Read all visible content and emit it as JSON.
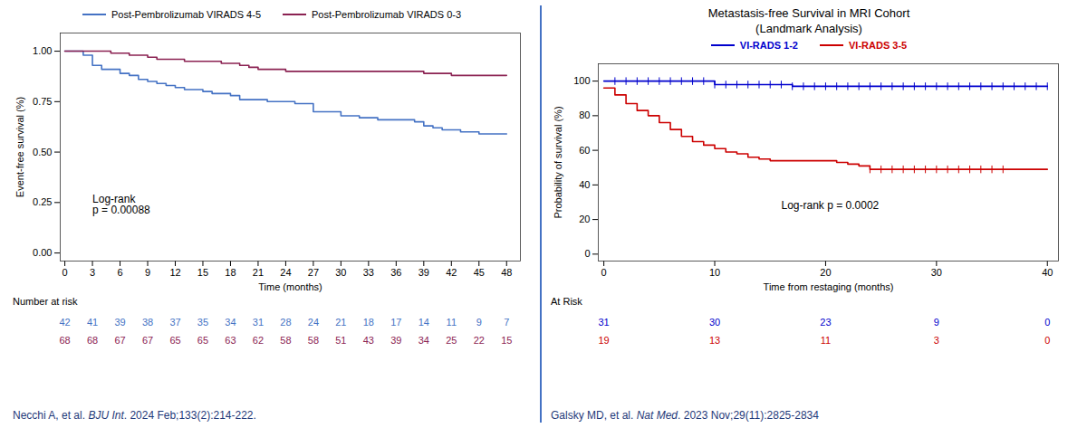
{
  "chart_data": [
    {
      "type": "step",
      "x_label": "Time (months)",
      "y_label": "Event-free survival (%)",
      "xlim": [
        -0.5,
        49.5
      ],
      "ylim": [
        -0.04,
        1.09
      ],
      "xticks": [
        0,
        3,
        6,
        9,
        12,
        15,
        18,
        21,
        24,
        27,
        30,
        33,
        36,
        39,
        42,
        45,
        48
      ],
      "yticks": [
        {
          "value": 0.0,
          "label": "0.00"
        },
        {
          "value": 0.25,
          "label": "0.25"
        },
        {
          "value": 0.5,
          "label": "0.50"
        },
        {
          "value": 0.75,
          "label": "0.75"
        },
        {
          "value": 1.0,
          "label": "1.00"
        }
      ],
      "grid": false,
      "legend": "top",
      "series": [
        {
          "name": "Post-Pembrolizumab VIRADS 4-5",
          "color": "#4472C4",
          "x": [
            0,
            2,
            3,
            4,
            6,
            7,
            8,
            9,
            10,
            11,
            12,
            13,
            15,
            16,
            17,
            18,
            19,
            21,
            22,
            24,
            25,
            26,
            27,
            28,
            30,
            31,
            32,
            34,
            36,
            37,
            38,
            39,
            40,
            41,
            42,
            43,
            45,
            48
          ],
          "values": [
            1.0,
            0.98,
            0.93,
            0.91,
            0.89,
            0.88,
            0.86,
            0.85,
            0.84,
            0.83,
            0.82,
            0.81,
            0.8,
            0.79,
            0.79,
            0.78,
            0.76,
            0.76,
            0.75,
            0.75,
            0.74,
            0.74,
            0.7,
            0.7,
            0.68,
            0.68,
            0.67,
            0.66,
            0.66,
            0.66,
            0.65,
            0.63,
            0.62,
            0.61,
            0.61,
            0.6,
            0.59,
            0.59
          ],
          "at_risk": [
            42,
            41,
            39,
            38,
            37,
            35,
            34,
            31,
            28,
            24,
            21,
            18,
            17,
            14,
            11,
            9,
            7
          ]
        },
        {
          "name": "Post-Pembrolizumab VIRADS 0-3",
          "color": "#8B2252",
          "x": [
            0,
            5,
            7,
            9,
            10,
            12,
            13,
            17,
            18,
            19,
            20,
            21,
            23,
            24,
            26,
            38,
            39,
            42,
            48
          ],
          "values": [
            1.0,
            0.99,
            0.98,
            0.97,
            0.96,
            0.96,
            0.95,
            0.94,
            0.94,
            0.93,
            0.92,
            0.91,
            0.91,
            0.9,
            0.9,
            0.9,
            0.89,
            0.88,
            0.88
          ],
          "at_risk": [
            68,
            68,
            67,
            67,
            65,
            65,
            63,
            62,
            58,
            58,
            51,
            43,
            39,
            34,
            25,
            22,
            15
          ]
        }
      ],
      "at_risk_title": "Number at risk",
      "at_risk_x": [
        0,
        3,
        6,
        9,
        12,
        15,
        18,
        21,
        24,
        27,
        30,
        33,
        36,
        39,
        42,
        45,
        48
      ],
      "annotations": [
        {
          "text": "Log-rank\np = 0.00088",
          "x": 3,
          "y": 0.24
        }
      ],
      "caption_parts": [
        "Necchi A, et al. ",
        "BJU Int",
        ". 2024 Feb;133(2):214-222."
      ],
      "caption_color": "#1F3A7A"
    },
    {
      "type": "step",
      "title": "Metastasis-free Survival in MRI Cohort",
      "subtitle": "(Landmark Analysis)",
      "x_label": "Time from restaging (months)",
      "y_label": "Probability of survival (%)",
      "xlim": [
        -0.5,
        41
      ],
      "ylim": [
        -4,
        110
      ],
      "xticks": [
        0,
        10,
        20,
        30,
        40
      ],
      "yticks": [
        0,
        20,
        40,
        60,
        80,
        100
      ],
      "grid": false,
      "legend": "top",
      "series": [
        {
          "name": "VI-RADS 1-2",
          "color": "#0000CD",
          "x": [
            0,
            1,
            2,
            3,
            4,
            5,
            6,
            7,
            8,
            9,
            10,
            11,
            12,
            13,
            14,
            15,
            16,
            17,
            18,
            19,
            20,
            21,
            22,
            23,
            24,
            25,
            26,
            27,
            28,
            29,
            30,
            31,
            32,
            33,
            34,
            35,
            36,
            37,
            38,
            39,
            40
          ],
          "values": [
            100,
            100,
            100,
            100,
            100,
            100,
            100,
            100,
            100,
            100,
            98,
            98,
            98,
            98,
            98,
            98,
            98,
            97,
            97,
            97,
            97,
            97,
            97,
            97,
            97,
            97,
            97,
            97,
            97,
            97,
            97,
            97,
            97,
            97,
            97,
            97,
            97,
            97,
            97,
            97,
            97
          ],
          "censor_x": [
            1,
            2,
            3,
            4,
            5,
            6,
            7,
            8,
            9,
            10,
            11,
            12,
            13,
            14,
            15,
            16,
            17,
            18,
            19,
            20,
            21,
            22,
            23,
            24,
            25,
            26,
            27,
            28,
            29,
            30,
            31,
            32,
            33,
            34,
            35,
            36,
            37,
            38,
            39,
            40
          ],
          "censor_y": [
            100,
            100,
            100,
            100,
            100,
            100,
            100,
            100,
            100,
            98,
            98,
            98,
            98,
            98,
            98,
            98,
            97,
            97,
            97,
            97,
            97,
            97,
            97,
            97,
            97,
            97,
            97,
            97,
            97,
            97,
            97,
            97,
            97,
            97,
            97,
            97,
            97,
            97,
            97,
            97
          ],
          "at_risk": [
            31,
            30,
            23,
            9,
            0
          ]
        },
        {
          "name": "VI-RADS 3-5",
          "color": "#CC0000",
          "x": [
            0,
            1,
            2,
            3,
            4,
            5,
            6,
            7,
            8,
            9,
            10,
            11,
            12,
            13,
            14,
            15,
            16,
            17,
            18,
            19,
            20,
            21,
            22,
            23,
            24,
            25,
            26,
            27,
            28,
            29,
            30,
            31,
            32,
            33,
            34,
            35,
            36,
            37,
            38,
            39,
            40
          ],
          "values": [
            96,
            92,
            87,
            83,
            80,
            76,
            72,
            68,
            65,
            63,
            61,
            59,
            58,
            56,
            55,
            54,
            54,
            54,
            54,
            54,
            54,
            53,
            52,
            51,
            49,
            49,
            49,
            49,
            49,
            49,
            49,
            49,
            49,
            49,
            49,
            49,
            49,
            49,
            49,
            49,
            49
          ],
          "censor_x": [
            24,
            25,
            26,
            27,
            28,
            29,
            30,
            31,
            32,
            33,
            34,
            35,
            36
          ],
          "censor_y": [
            49,
            49,
            49,
            49,
            49,
            49,
            49,
            49,
            49,
            49,
            49,
            49,
            49
          ],
          "at_risk": [
            19,
            13,
            11,
            3,
            0
          ]
        }
      ],
      "at_risk_title": "At Risk",
      "at_risk_x": [
        0,
        10,
        20,
        30,
        40
      ],
      "annotations": [
        {
          "text": "Log-rank p = 0.0002",
          "x": 16,
          "y": 28
        }
      ],
      "caption_parts": [
        "Galsky MD, et al. ",
        "Nat Med",
        ". 2023 Nov;29(11):2825-2834"
      ],
      "caption_color": "#1F3A7A"
    }
  ]
}
